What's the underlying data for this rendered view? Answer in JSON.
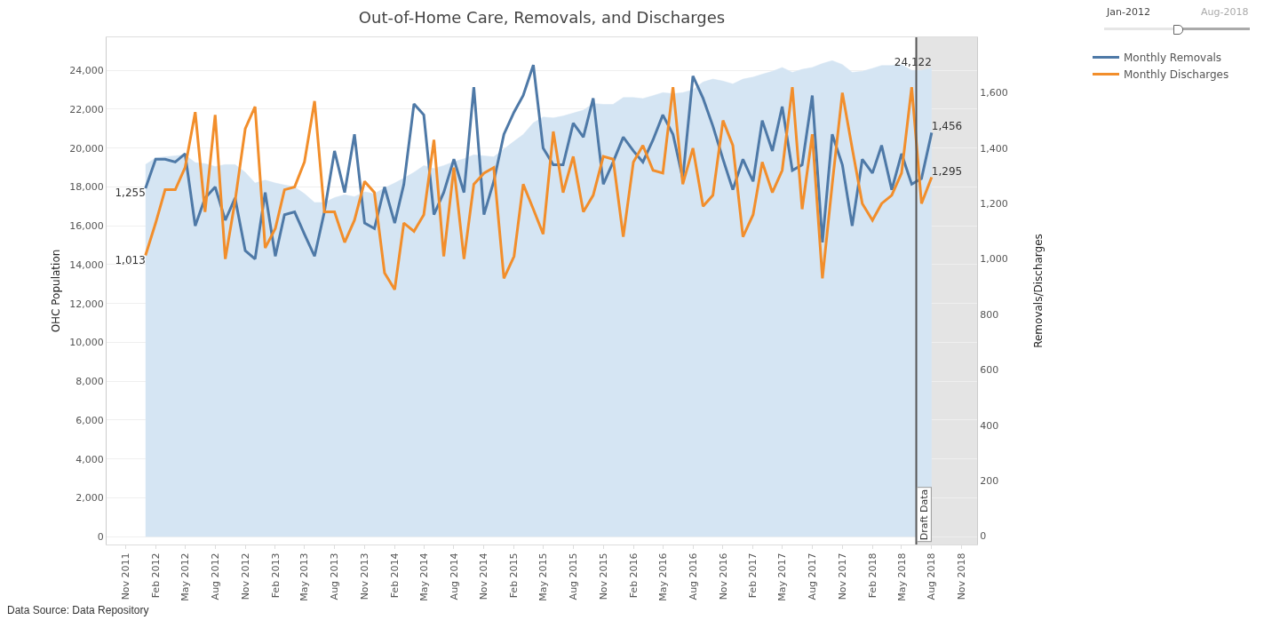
{
  "chart_data": {
    "type": "line",
    "title": "Out-of-Home Care, Removals, and Discharges",
    "ylabel": "OHC Population",
    "y2label": "Removals/Discharges",
    "x": [
      "2012-01",
      "2012-02",
      "2012-03",
      "2012-04",
      "2012-05",
      "2012-06",
      "2012-07",
      "2012-08",
      "2012-09",
      "2012-10",
      "2012-11",
      "2012-12",
      "2013-01",
      "2013-02",
      "2013-03",
      "2013-04",
      "2013-05",
      "2013-06",
      "2013-07",
      "2013-08",
      "2013-09",
      "2013-10",
      "2013-11",
      "2013-12",
      "2014-01",
      "2014-02",
      "2014-03",
      "2014-04",
      "2014-05",
      "2014-06",
      "2014-07",
      "2014-08",
      "2014-09",
      "2014-10",
      "2014-11",
      "2014-12",
      "2015-01",
      "2015-02",
      "2015-03",
      "2015-04",
      "2015-05",
      "2015-06",
      "2015-07",
      "2015-08",
      "2015-09",
      "2015-10",
      "2015-11",
      "2015-12",
      "2016-01",
      "2016-02",
      "2016-03",
      "2016-04",
      "2016-05",
      "2016-06",
      "2016-07",
      "2016-08",
      "2016-09",
      "2016-10",
      "2016-11",
      "2016-12",
      "2017-01",
      "2017-02",
      "2017-03",
      "2017-04",
      "2017-05",
      "2017-06",
      "2017-07",
      "2017-08",
      "2017-09",
      "2017-10",
      "2017-11",
      "2017-12",
      "2018-01",
      "2018-02",
      "2018-03",
      "2018-04",
      "2018-05",
      "2018-06",
      "2018-07",
      "2018-08"
    ],
    "series": [
      {
        "type": "area",
        "color": "#d5e5f3",
        "values": [
          19150,
          19500,
          19550,
          19600,
          19650,
          19250,
          19200,
          19050,
          19150,
          19150,
          18750,
          18200,
          18350,
          18200,
          18100,
          18000,
          17650,
          17200,
          17200,
          17450,
          17600,
          17500,
          17750,
          17650,
          17950,
          18200,
          18450,
          18750,
          19100,
          18950,
          19100,
          19300,
          19450,
          19650,
          19600,
          19550,
          19950,
          20350,
          20700,
          21300,
          21600,
          21550,
          21650,
          21800,
          21950,
          22300,
          22250,
          22250,
          22600,
          22600,
          22550,
          22700,
          22850,
          22800,
          22850,
          23000,
          23400,
          23550,
          23450,
          23300,
          23550,
          23650,
          23800,
          23950,
          24150,
          23900,
          24050,
          24150,
          24350,
          24500,
          24300,
          23900,
          23950,
          24100,
          24250,
          24250,
          24300,
          24000,
          24000,
          24122
        ],
        "value_labels": [
          null,
          null,
          null,
          null,
          null,
          null,
          null,
          null,
          null,
          null,
          null,
          null,
          null,
          null,
          null,
          null,
          null,
          null,
          null,
          null,
          null,
          null,
          null,
          null,
          null,
          null,
          null,
          null,
          null,
          null,
          null,
          null,
          null,
          null,
          null,
          null,
          null,
          null,
          null,
          null,
          null,
          null,
          null,
          null,
          null,
          null,
          null,
          null,
          null,
          null,
          null,
          null,
          null,
          null,
          null,
          null,
          null,
          null,
          null,
          null,
          null,
          null,
          null,
          null,
          null,
          null,
          null,
          null,
          null,
          null,
          null,
          null,
          null,
          null,
          null,
          null,
          null,
          null,
          null,
          "24,122"
        ]
      },
      {
        "name": "Monthly Removals",
        "axis": "y2",
        "color": "#4e79a7",
        "values": [
          1255,
          1360,
          1360,
          1350,
          1380,
          1120,
          1220,
          1260,
          1140,
          1220,
          1030,
          1000,
          1240,
          1010,
          1160,
          1170,
          1090,
          1010,
          1170,
          1390,
          1240,
          1450,
          1130,
          1110,
          1260,
          1130,
          1270,
          1560,
          1520,
          1160,
          1240,
          1360,
          1240,
          1620,
          1160,
          1280,
          1450,
          1530,
          1590,
          1700,
          1400,
          1340,
          1340,
          1490,
          1440,
          1580,
          1270,
          1350,
          1440,
          1390,
          1350,
          1430,
          1520,
          1450,
          1290,
          1660,
          1580,
          1480,
          1360,
          1250,
          1360,
          1280,
          1500,
          1390,
          1550,
          1320,
          1340,
          1590,
          1060,
          1450,
          1340,
          1120,
          1360,
          1310,
          1410,
          1250,
          1380,
          1270,
          1290,
          1456
        ],
        "value_labels": [
          "1,255",
          null,
          null,
          null,
          null,
          null,
          null,
          null,
          null,
          null,
          null,
          null,
          null,
          null,
          null,
          null,
          null,
          null,
          null,
          null,
          null,
          null,
          null,
          null,
          null,
          null,
          null,
          null,
          null,
          null,
          null,
          null,
          null,
          null,
          null,
          null,
          null,
          null,
          null,
          null,
          null,
          null,
          null,
          null,
          null,
          null,
          null,
          null,
          null,
          null,
          null,
          null,
          null,
          null,
          null,
          null,
          null,
          null,
          null,
          null,
          null,
          null,
          null,
          null,
          null,
          null,
          null,
          null,
          null,
          null,
          null,
          null,
          null,
          null,
          null,
          null,
          null,
          null,
          null,
          "1,456"
        ]
      },
      {
        "name": "Monthly Discharges",
        "axis": "y2",
        "color": "#f28e2b",
        "values": [
          1013,
          1130,
          1250,
          1250,
          1330,
          1530,
          1170,
          1520,
          1000,
          1210,
          1470,
          1550,
          1040,
          1110,
          1250,
          1260,
          1350,
          1570,
          1170,
          1170,
          1060,
          1140,
          1280,
          1240,
          950,
          890,
          1130,
          1100,
          1160,
          1430,
          1010,
          1330,
          1000,
          1270,
          1310,
          1330,
          930,
          1010,
          1270,
          1180,
          1090,
          1460,
          1240,
          1370,
          1170,
          1230,
          1370,
          1360,
          1080,
          1350,
          1410,
          1320,
          1310,
          1620,
          1270,
          1400,
          1190,
          1230,
          1500,
          1410,
          1080,
          1160,
          1350,
          1240,
          1320,
          1620,
          1180,
          1450,
          930,
          1270,
          1600,
          1400,
          1200,
          1140,
          1200,
          1230,
          1310,
          1620,
          1200,
          1295
        ],
        "value_labels": [
          "1,013",
          null,
          null,
          null,
          null,
          null,
          null,
          null,
          null,
          null,
          null,
          null,
          null,
          null,
          null,
          null,
          null,
          null,
          null,
          null,
          null,
          null,
          null,
          null,
          null,
          null,
          null,
          null,
          null,
          null,
          null,
          null,
          null,
          null,
          null,
          null,
          null,
          null,
          null,
          null,
          null,
          null,
          null,
          null,
          null,
          null,
          null,
          null,
          null,
          null,
          null,
          null,
          null,
          null,
          null,
          null,
          null,
          null,
          null,
          null,
          null,
          null,
          null,
          null,
          null,
          null,
          null,
          null,
          null,
          null,
          null,
          null,
          null,
          null,
          null,
          null,
          null,
          null,
          null,
          "1,295"
        ]
      }
    ],
    "xlim": [
      "2011-09-04",
      "2018-12-18"
    ],
    "xticks": [
      {
        "value": "2011-11",
        "label": "Nov 2011"
      },
      {
        "value": "2012-02",
        "label": "Feb 2012"
      },
      {
        "value": "2012-05",
        "label": "May 2012"
      },
      {
        "value": "2012-08",
        "label": "Aug 2012"
      },
      {
        "value": "2012-11",
        "label": "Nov 2012"
      },
      {
        "value": "2013-02",
        "label": "Feb 2013"
      },
      {
        "value": "2013-05",
        "label": "May 2013"
      },
      {
        "value": "2013-08",
        "label": "Aug 2013"
      },
      {
        "value": "2013-11",
        "label": "Nov 2013"
      },
      {
        "value": "2014-02",
        "label": "Feb 2014"
      },
      {
        "value": "2014-05",
        "label": "May 2014"
      },
      {
        "value": "2014-08",
        "label": "Aug 2014"
      },
      {
        "value": "2014-11",
        "label": "Nov 2014"
      },
      {
        "value": "2015-02",
        "label": "Feb 2015"
      },
      {
        "value": "2015-05",
        "label": "May 2015"
      },
      {
        "value": "2015-08",
        "label": "Aug 2015"
      },
      {
        "value": "2015-11",
        "label": "Nov 2015"
      },
      {
        "value": "2016-02",
        "label": "Feb 2016"
      },
      {
        "value": "2016-05",
        "label": "May 2016"
      },
      {
        "value": "2016-08",
        "label": "Aug 2016"
      },
      {
        "value": "2016-11",
        "label": "Nov 2016"
      },
      {
        "value": "2017-02",
        "label": "Feb 2017"
      },
      {
        "value": "2017-05",
        "label": "May 2017"
      },
      {
        "value": "2017-08",
        "label": "Aug 2017"
      },
      {
        "value": "2017-11",
        "label": "Nov 2017"
      },
      {
        "value": "2018-02",
        "label": "Feb 2018"
      },
      {
        "value": "2018-05",
        "label": "May 2018"
      },
      {
        "value": "2018-08",
        "label": "Aug 2018"
      },
      {
        "value": "2018-11",
        "label": "Nov 2018"
      }
    ],
    "ylim": [
      -400,
      25700
    ],
    "yticks": [
      0,
      {
        "value": 2000,
        "label": "2,000"
      },
      {
        "value": 4000,
        "label": "4,000"
      },
      {
        "value": 6000,
        "label": "6,000"
      },
      {
        "value": 8000,
        "label": "8,000"
      },
      {
        "value": 10000,
        "label": "10,000"
      },
      {
        "value": 12000,
        "label": "12,000"
      },
      {
        "value": 14000,
        "label": "14,000"
      },
      {
        "value": 16000,
        "label": "16,000"
      },
      {
        "value": 18000,
        "label": "18,000"
      },
      {
        "value": 20000,
        "label": "20,000"
      },
      {
        "value": 22000,
        "label": "22,000"
      },
      {
        "value": 24000,
        "label": "24,000"
      }
    ],
    "y2lim": [
      -30,
      1800
    ],
    "y2ticks": [
      0,
      200,
      400,
      600,
      800,
      {
        "value": 1000,
        "label": "1,000"
      },
      {
        "value": 1200,
        "label": "1,200"
      },
      {
        "value": 1400,
        "label": "1,400"
      },
      {
        "value": 1600,
        "label": "1,600"
      }
    ],
    "ref_lines": [
      {
        "axis": "x",
        "value": "2018-06-15",
        "color": "#555555"
      }
    ],
    "bands": [
      {
        "axis": "x",
        "from": "2018-06-15",
        "to": "2018-12-18",
        "label": "Draft Data",
        "color": "#e4e4e4"
      }
    ],
    "grid": "y",
    "legend": "top right",
    "line_style": "solid",
    "annotations": [
      "Jan-2012",
      "Aug-2018",
      "Data Source: Data Repository"
    ]
  }
}
